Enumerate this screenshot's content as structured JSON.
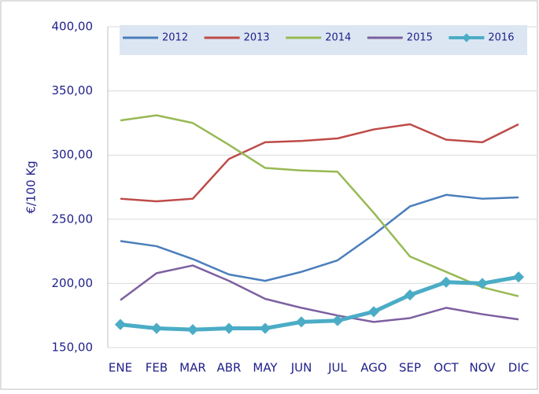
{
  "chart_data": {
    "type": "line",
    "y_label": "€/100 Kg",
    "categories": [
      "ENE",
      "FEB",
      "MAR",
      "ABR",
      "MAY",
      "JUN",
      "JUL",
      "AGO",
      "SEP",
      "OCT",
      "NOV",
      "DIC"
    ],
    "series": [
      {
        "name": "2012",
        "color": "#4a7ebb",
        "values": [
          233,
          229,
          219,
          207,
          202,
          209,
          218,
          238,
          260,
          269,
          266,
          267
        ]
      },
      {
        "name": "2013",
        "color": "#be4b48",
        "values": [
          266,
          264,
          266,
          297,
          310,
          311,
          313,
          320,
          324,
          312,
          310,
          324
        ]
      },
      {
        "name": "2014",
        "color": "#98b954",
        "values": [
          327,
          331,
          325,
          308,
          290,
          288,
          287,
          255,
          221,
          209,
          197,
          190
        ]
      },
      {
        "name": "2015",
        "color": "#7d60a0",
        "values": [
          187,
          208,
          214,
          202,
          188,
          181,
          175,
          170,
          173,
          181,
          176,
          172
        ]
      },
      {
        "name": "2016",
        "color": "#4bacc6",
        "values": [
          168,
          165,
          164,
          165,
          165,
          170,
          171,
          178,
          191,
          201,
          200,
          205
        ],
        "markers": true
      }
    ],
    "ylim": [
      150,
      400
    ],
    "yticks": [
      {
        "value": 150,
        "label": "150,00"
      },
      {
        "value": 200,
        "label": "200,00"
      },
      {
        "value": 250,
        "label": "250,00"
      },
      {
        "value": 300,
        "label": "300,00"
      },
      {
        "value": 350,
        "label": "350,00"
      },
      {
        "value": 400,
        "label": "400,00"
      }
    ],
    "grid": true,
    "legend": "top"
  }
}
